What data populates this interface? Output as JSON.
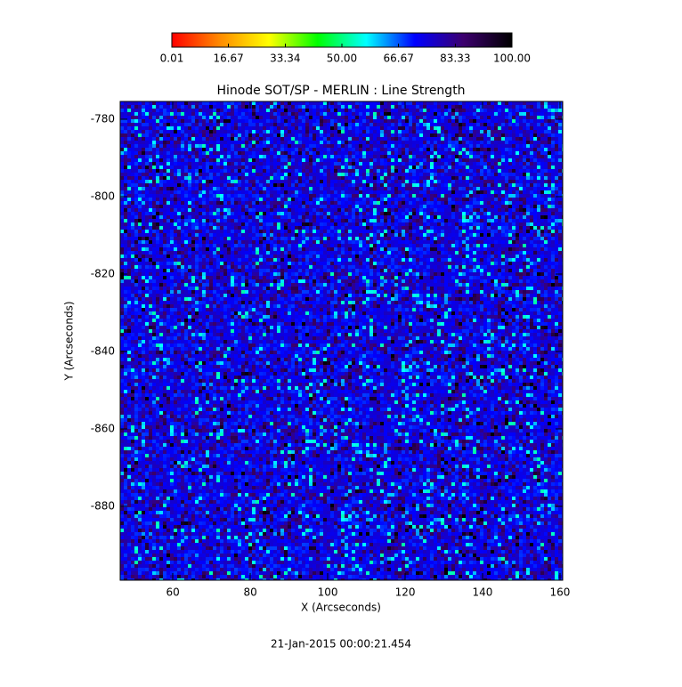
{
  "chart_data": {
    "type": "heatmap",
    "title": "Hinode SOT/SP - MERLIN : Line Strength",
    "x_label": "X (Arcseconds)",
    "y_label": "Y (Arcseconds)",
    "timestamp": "21-Jan-2015 00:00:21.454",
    "xlim": [
      46.4,
      160.7
    ],
    "xticks": [
      60,
      80,
      100,
      120,
      140,
      160
    ],
    "ylim": [
      -899.1,
      -775.4
    ],
    "yticks": [
      -780,
      -800,
      -820,
      -840,
      -860,
      -880
    ],
    "colorbar": {
      "lim": [
        0.01,
        100
      ],
      "ticks": [
        0.01,
        16.67,
        33.34,
        {
          "value": 50,
          "label": "50.00"
        },
        66.67,
        83.33,
        {
          "value": 100,
          "label": "100.00"
        }
      ],
      "colormap": [
        "#ff0000",
        "#ff8c00",
        "#ffff00",
        "#00ff00",
        "#00ffff",
        "#0000ff",
        "#3c006e",
        "#000000"
      ]
    }
  }
}
